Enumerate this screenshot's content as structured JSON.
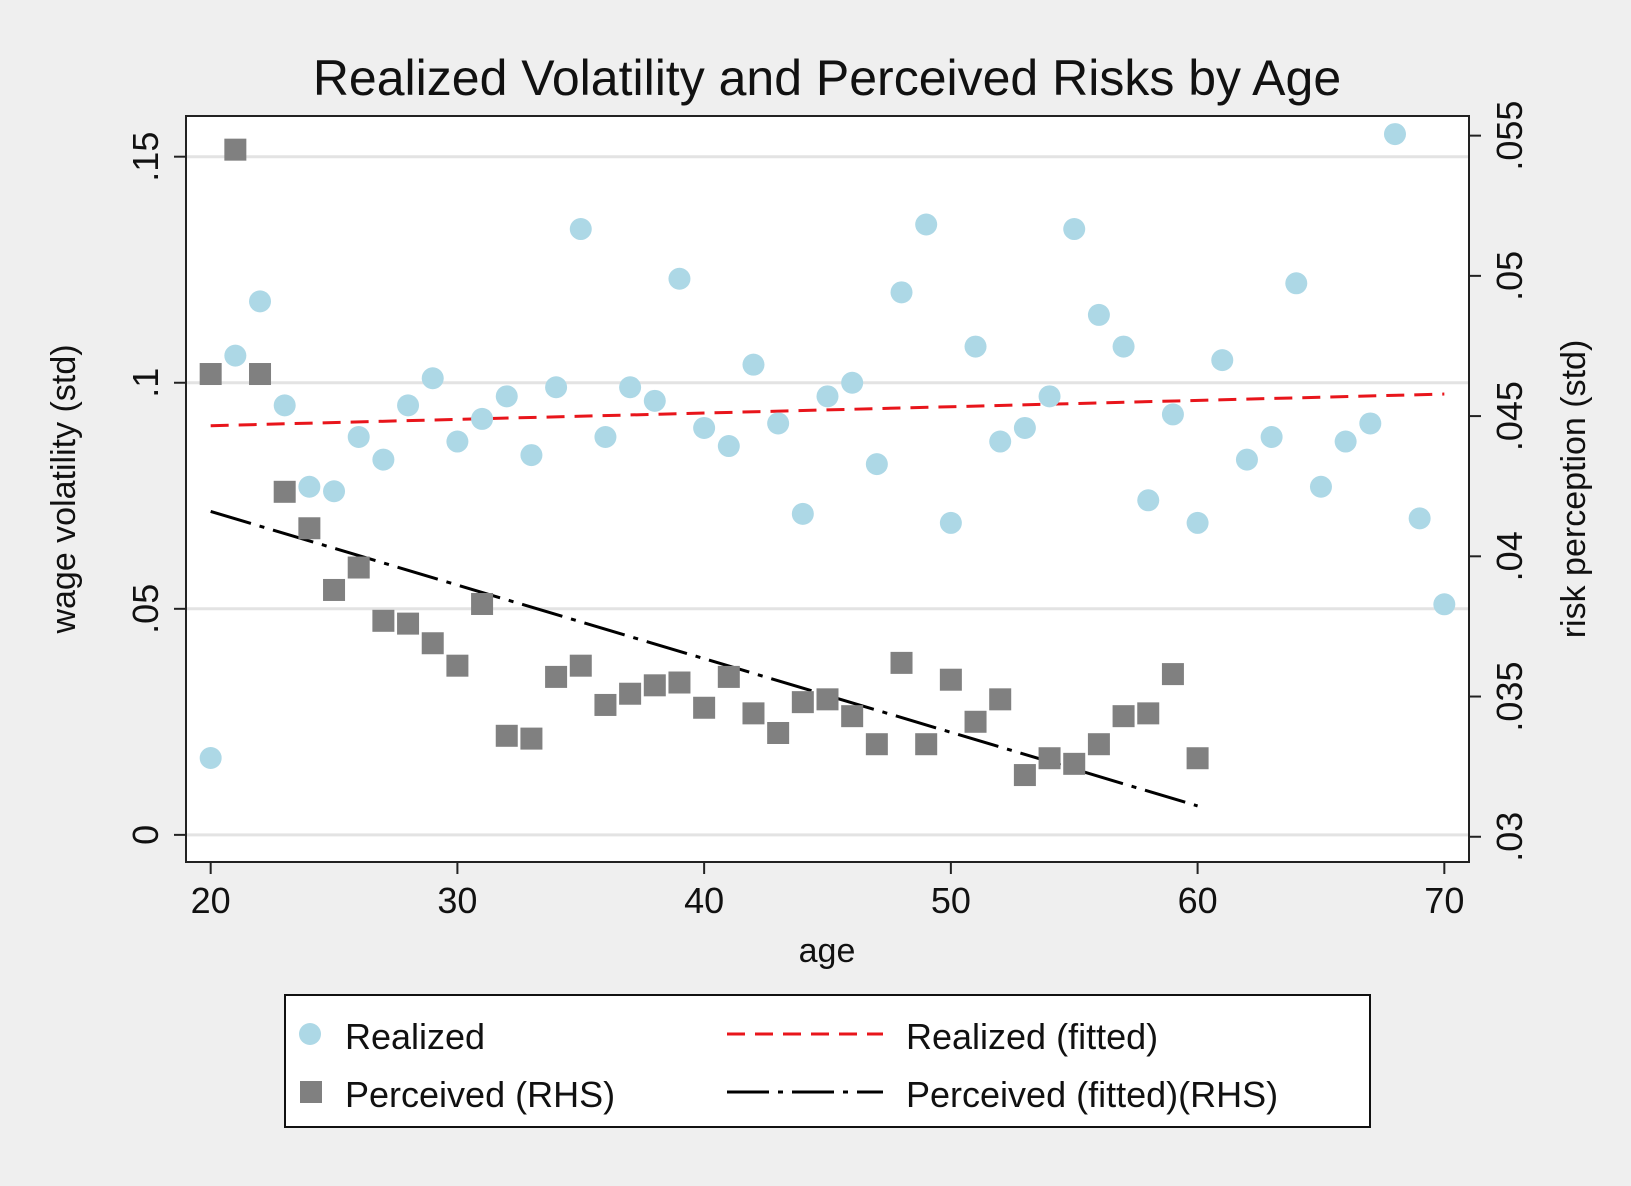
{
  "chart_data": {
    "type": "scatter",
    "title": "Realized Volatility and Perceived Risks by Age",
    "xlabel": "age",
    "ylabel_left": "wage volatility (std)",
    "ylabel_right": "risk perception (std)",
    "xlim": [
      19,
      71
    ],
    "ylim_left": [
      -0.006,
      0.159
    ],
    "ylim_right": [
      0.0291,
      0.0557
    ],
    "x_ticks": [
      20,
      30,
      40,
      50,
      60,
      70
    ],
    "x_tick_labels": [
      "20",
      "30",
      "40",
      "50",
      "60",
      "70"
    ],
    "y_left_ticks": [
      0,
      0.05,
      0.1,
      0.15
    ],
    "y_left_tick_labels": [
      "0",
      ".05",
      ".1",
      ".15"
    ],
    "y_right_ticks": [
      0.03,
      0.035,
      0.04,
      0.045,
      0.05,
      0.055
    ],
    "y_right_tick_labels": [
      ".03",
      ".035",
      ".04",
      ".045",
      ".05",
      ".055"
    ],
    "grid": "horizontal (left axis)",
    "legend_placement": "bottom",
    "series": [
      {
        "name": "Realized",
        "kind": "scatter",
        "marker": "circle",
        "axis": "left",
        "color": "#add8e6",
        "x": [
          20,
          21,
          22,
          23,
          24,
          25,
          26,
          27,
          28,
          29,
          30,
          31,
          32,
          33,
          34,
          35,
          36,
          37,
          38,
          39,
          40,
          41,
          42,
          43,
          44,
          45,
          46,
          47,
          48,
          49,
          50,
          51,
          52,
          53,
          54,
          55,
          56,
          57,
          58,
          59,
          60,
          61,
          62,
          63,
          64,
          65,
          66,
          67,
          68,
          69,
          70
        ],
        "y": [
          0.017,
          0.106,
          0.118,
          0.095,
          0.077,
          0.076,
          0.088,
          0.083,
          0.095,
          0.101,
          0.087,
          0.092,
          0.097,
          0.084,
          0.099,
          0.134,
          0.088,
          0.099,
          0.096,
          0.123,
          0.09,
          0.086,
          0.104,
          0.091,
          0.071,
          0.097,
          0.1,
          0.082,
          0.12,
          0.135,
          0.069,
          0.108,
          0.087,
          0.09,
          0.097,
          0.134,
          0.115,
          0.108,
          0.074,
          0.093,
          0.069,
          0.105,
          0.083,
          0.088,
          0.122,
          0.077,
          0.087,
          0.091,
          0.155,
          0.07,
          0.051
        ]
      },
      {
        "name": "Perceived (RHS)",
        "kind": "scatter",
        "marker": "square",
        "axis": "right",
        "color": "#808080",
        "x": [
          20,
          21,
          22,
          23,
          24,
          25,
          26,
          27,
          28,
          29,
          30,
          31,
          32,
          33,
          34,
          35,
          36,
          37,
          38,
          39,
          40,
          41,
          42,
          43,
          44,
          45,
          46,
          47,
          48,
          49,
          50,
          51,
          52,
          53,
          54,
          55,
          56,
          57,
          58,
          59,
          60
        ],
        "y": [
          0.0465,
          0.0545,
          0.0465,
          0.0423,
          0.041,
          0.0388,
          0.0396,
          0.0377,
          0.0376,
          0.0369,
          0.0361,
          0.0383,
          0.0336,
          0.0335,
          0.0357,
          0.0361,
          0.0347,
          0.0351,
          0.0354,
          0.0355,
          0.0346,
          0.0357,
          0.0344,
          0.0337,
          0.0348,
          0.0349,
          0.0343,
          0.0333,
          0.0362,
          0.0333,
          0.0356,
          0.0341,
          0.0349,
          0.0322,
          0.0328,
          0.0326,
          0.0333,
          0.0343,
          0.0344,
          0.0358,
          0.0328
        ]
      },
      {
        "name": "Realized (fitted)",
        "kind": "line",
        "style": "dashed",
        "axis": "left",
        "color": "#e8151b",
        "x": [
          20,
          70
        ],
        "y": [
          0.0905,
          0.0975
        ]
      },
      {
        "name": "Perceived (fitted)(RHS)",
        "kind": "line",
        "style": "dash-dot",
        "axis": "right",
        "color": "#000000",
        "x": [
          20,
          60
        ],
        "y": [
          0.0416,
          0.0311
        ]
      }
    ]
  }
}
